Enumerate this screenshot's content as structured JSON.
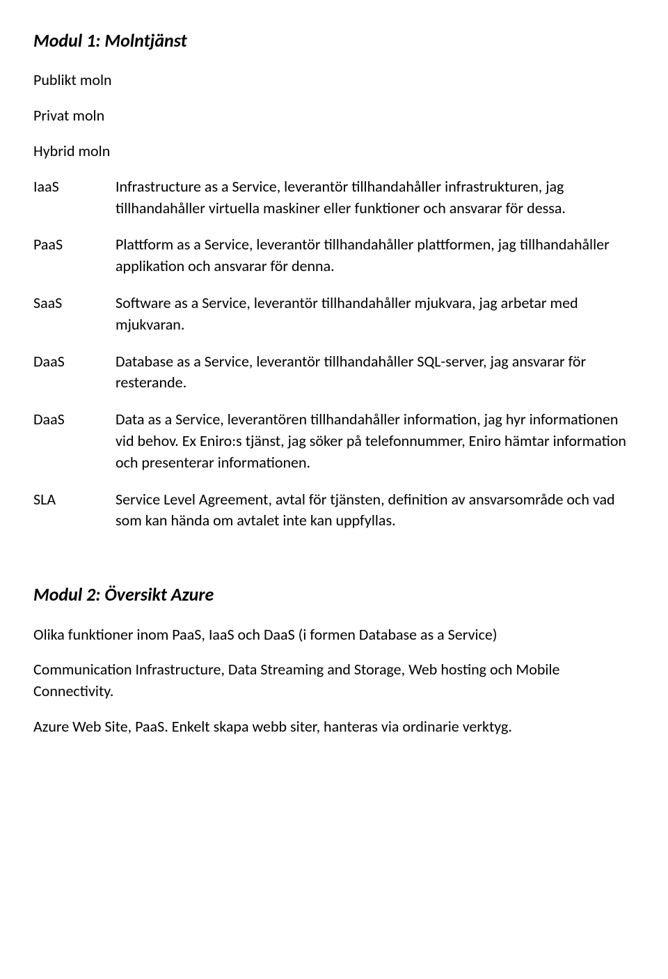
{
  "module1": {
    "title": "Modul 1: Molntjänst",
    "intro_lines": [
      "Publikt moln",
      "Privat moln",
      "Hybrid moln"
    ],
    "terms": [
      {
        "label": "IaaS",
        "definition": "Infrastructure as a Service, leverantör tillhandahåller infrastrukturen, jag tillhandahåller virtuella maskiner eller funktioner och ansvarar för dessa."
      },
      {
        "label": "PaaS",
        "definition": "Plattform as a Service, leverantör tillhandahåller plattformen, jag tillhandahåller applikation och ansvarar för denna."
      },
      {
        "label": "SaaS",
        "definition": "Software as a Service, leverantör tillhandahåller mjukvara, jag arbetar med mjukvaran."
      },
      {
        "label": "DaaS",
        "definition": "Database as a Service, leverantör tillhandahåller SQL-server, jag ansvarar för resterande."
      },
      {
        "label": "DaaS",
        "definition": "Data as a Service, leverantören tillhandahåller information, jag hyr informationen vid behov. Ex Eniro:s tjänst, jag söker på telefonnummer, Eniro hämtar information och presenterar informationen."
      },
      {
        "label": "SLA",
        "definition": "Service Level Agreement, avtal för tjänsten, definition av ansvarsområde och vad som kan hända om avtalet inte kan uppfyllas."
      }
    ]
  },
  "module2": {
    "title": "Modul 2: Översikt Azure",
    "paragraphs": [
      "Olika funktioner inom PaaS, IaaS och DaaS (i formen Database as a Service)",
      "Communication Infrastructure, Data Streaming and Storage, Web hosting och Mobile Connectivity.",
      "Azure Web Site, PaaS. Enkelt skapa webb siter, hanteras via ordinarie verktyg."
    ]
  },
  "style": {
    "text_color": "#000000",
    "background_color": "#ffffff",
    "heading_fontsize": 26,
    "body_fontsize": 22,
    "font_family": "Calibri"
  }
}
